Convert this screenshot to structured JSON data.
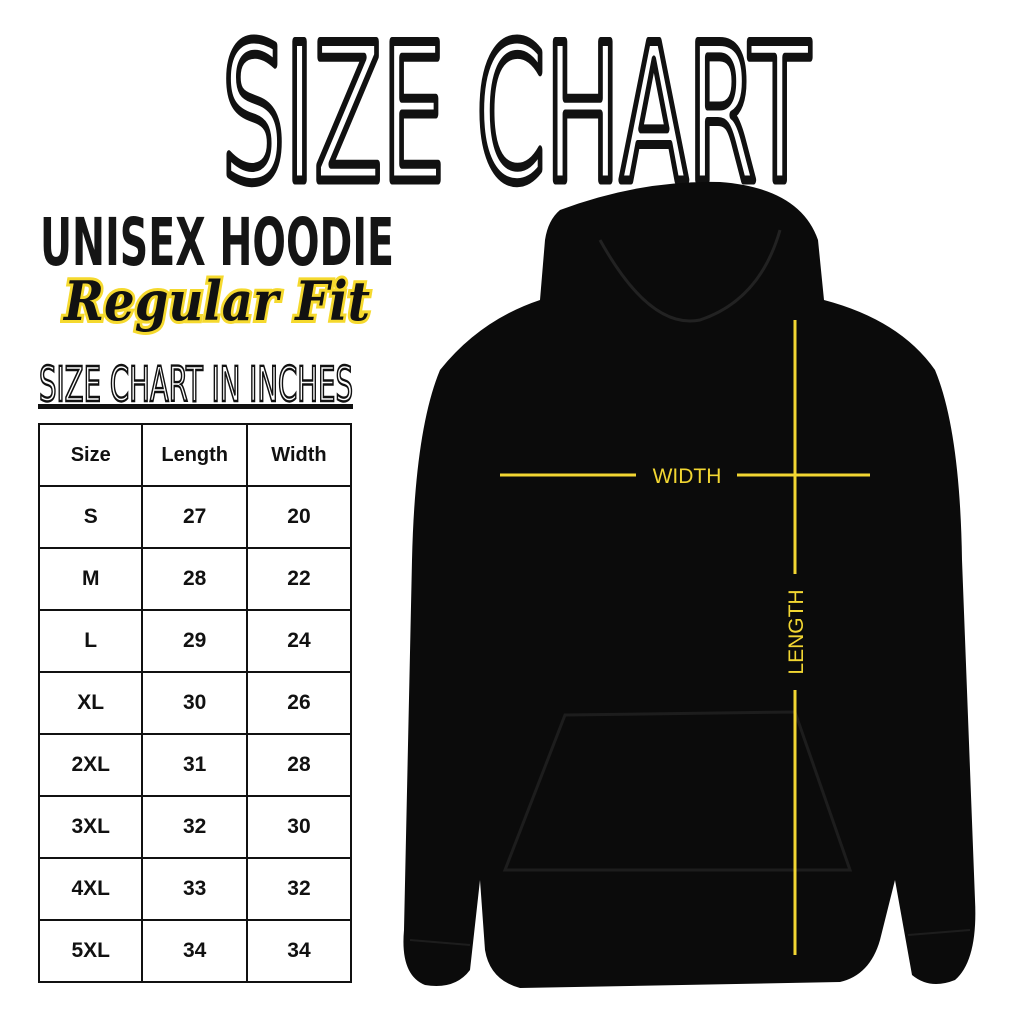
{
  "title": "SIZE CHART",
  "subtitle": "UNISEX HOODIE",
  "fit": "Regular Fit",
  "units_label": "SIZE CHART IN INCHES",
  "table": {
    "headers": [
      "Size",
      "Length",
      "Width"
    ],
    "rows": [
      [
        "S",
        "27",
        "20"
      ],
      [
        "M",
        "28",
        "22"
      ],
      [
        "L",
        "29",
        "24"
      ],
      [
        "XL",
        "30",
        "26"
      ],
      [
        "2XL",
        "31",
        "28"
      ],
      [
        "3XL",
        "32",
        "30"
      ],
      [
        "4XL",
        "33",
        "32"
      ],
      [
        "5XL",
        "34",
        "34"
      ]
    ]
  },
  "diagram": {
    "width_label": "WIDTH",
    "length_label": "LENGTH",
    "line_color": "#f2d632",
    "garment_color": "#0b0b0b"
  }
}
